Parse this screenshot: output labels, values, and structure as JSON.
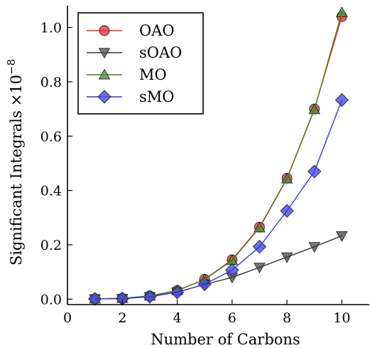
{
  "chart_data": {
    "type": "line",
    "title": "",
    "xlabel": "Number of Carbons",
    "ylabel": "Significant Integrals",
    "ylabel_scale": "×10",
    "ylabel_scale_exp": "−8",
    "xlim": [
      0,
      11
    ],
    "ylim": [
      -0.02,
      1.08
    ],
    "xticks": [
      0,
      2,
      4,
      6,
      8,
      10
    ],
    "xtick_labels": [
      "0",
      "2",
      "4",
      "6",
      "8",
      "10"
    ],
    "yticks": [
      0.0,
      0.2,
      0.4,
      0.6,
      0.8,
      1.0
    ],
    "ytick_labels": [
      "0.0",
      "0.2",
      "0.4",
      "0.6",
      "0.8",
      "1.0"
    ],
    "grid": false,
    "legend_position": "top-left",
    "x": [
      1,
      2,
      3,
      4,
      5,
      6,
      7,
      8,
      9,
      10
    ],
    "series": [
      {
        "name": "OAO",
        "marker": "circle",
        "color": "#e8383b",
        "line_color": "#d93030",
        "values": [
          0.001,
          0.003,
          0.012,
          0.032,
          0.073,
          0.145,
          0.265,
          0.445,
          0.7,
          1.04
        ]
      },
      {
        "name": "sOAO",
        "marker": "triangle-down",
        "color": "#555555",
        "line_color": "#333333",
        "values": [
          0.001,
          0.002,
          0.009,
          0.026,
          0.054,
          0.08,
          0.117,
          0.155,
          0.193,
          0.233
        ]
      },
      {
        "name": "MO",
        "marker": "triangle-up",
        "color": "#3d9a3d",
        "line_color": "#4a7a20",
        "values": [
          0.001,
          0.003,
          0.012,
          0.032,
          0.072,
          0.143,
          0.263,
          0.443,
          0.698,
          1.055
        ]
      },
      {
        "name": "sMO",
        "marker": "diamond",
        "color": "#4a4af0",
        "line_color": "#3535e0",
        "values": [
          0.001,
          0.002,
          0.009,
          0.025,
          0.055,
          0.107,
          0.193,
          0.325,
          0.47,
          0.733
        ]
      }
    ]
  }
}
